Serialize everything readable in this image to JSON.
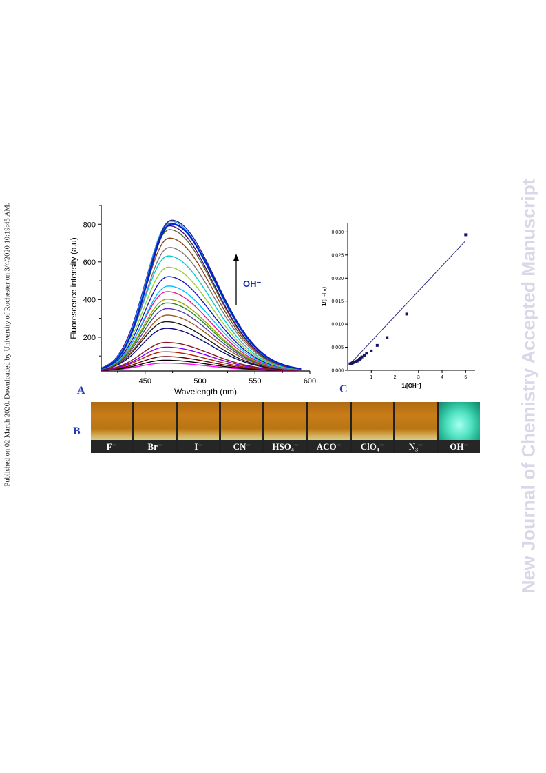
{
  "side_note": "Published on 02 March 2020. Downloaded by University of Rochester on 3/4/2020 10:19:45 AM.",
  "watermark": "New Journal of Chemistry Accepted Manuscript",
  "panels": {
    "a": "A",
    "b": "B",
    "c": "C"
  },
  "colors": {
    "panel_label": "#2338b8",
    "watermark": "#d8d8e8",
    "vial_orange": "#c87d18",
    "vial_green": "#52e3c4"
  },
  "arrow_label": "OH⁻",
  "vials": [
    {
      "label": "F⁻",
      "green": false
    },
    {
      "label": "Br⁻",
      "green": false
    },
    {
      "label": "I⁻",
      "green": false
    },
    {
      "label": "CN⁻",
      "green": false
    },
    {
      "label": "HSO₄⁻",
      "green": false
    },
    {
      "label": "ACO⁻",
      "green": false
    },
    {
      "label": "ClO₄⁻",
      "green": false
    },
    {
      "label": "N₃⁻",
      "green": false
    },
    {
      "label": "OH⁻",
      "green": true
    }
  ],
  "chart_data": [
    {
      "type": "line",
      "xlabel": "Wavelength (nm)",
      "ylabel": "Fluorescence intensity (a.u)",
      "xlim": [
        410,
        600
      ],
      "ylim": [
        20,
        900
      ],
      "xticks": [
        450,
        500,
        550,
        600
      ],
      "yticks": [
        200,
        400,
        600,
        800
      ],
      "grid": false,
      "curves": {
        "peak_x": [
          468,
          468,
          468,
          468,
          469,
          469,
          469,
          469,
          470,
          470,
          470,
          470,
          470,
          471,
          471,
          471,
          471,
          472,
          472,
          472,
          472,
          473,
          473,
          474,
          474
        ],
        "peak_intensity": [
          40,
          55,
          75,
          100,
          125,
          150,
          225,
          260,
          295,
          330,
          360,
          380,
          420,
          450,
          500,
          550,
          610,
          655,
          705,
          750,
          770,
          785,
          795,
          800,
          780
        ],
        "colors": [
          "#ff00ff",
          "#000000",
          "#6a0000",
          "#aa2200",
          "#7f00ff",
          "#8b1a1a",
          "#0a0a80",
          "#1a1a1a",
          "#9a5a20",
          "#5a3ab0",
          "#228b22",
          "#a0a000",
          "#e11b8f",
          "#00bfff",
          "#1414d0",
          "#9acd32",
          "#00ced1",
          "#7a7a7a",
          "#8b4513",
          "#556b2f",
          "#4b0082",
          "#00a0a0",
          "#1e90ff",
          "#222288",
          "#0022cc"
        ]
      }
    },
    {
      "type": "scatter",
      "xlabel": "1/[OH⁻]",
      "ylabel": "1/(F-F₀)",
      "xlim": [
        0,
        5.4
      ],
      "ylim": [
        0,
        0.032
      ],
      "xticks": [
        "1",
        "2",
        "3",
        "4",
        "5"
      ],
      "yticks": [
        "0.000",
        "0.005",
        "0.010",
        "0.015",
        "0.020",
        "0.025",
        "0.030"
      ],
      "grid": false,
      "x": [
        0.1,
        0.15,
        0.2,
        0.25,
        0.3,
        0.35,
        0.4,
        0.45,
        0.5,
        0.55,
        0.6,
        0.7,
        0.8,
        1.0,
        1.25,
        1.67,
        2.5,
        5.0
      ],
      "y": [
        0.0014,
        0.0015,
        0.0016,
        0.0017,
        0.0018,
        0.0019,
        0.002,
        0.0022,
        0.0024,
        0.0026,
        0.0029,
        0.0033,
        0.0037,
        0.0042,
        0.0054,
        0.0071,
        0.0122,
        0.0294
      ],
      "fit": {
        "x": [
          0.05,
          5.0
        ],
        "y": [
          0.0011,
          0.0281
        ]
      }
    }
  ]
}
